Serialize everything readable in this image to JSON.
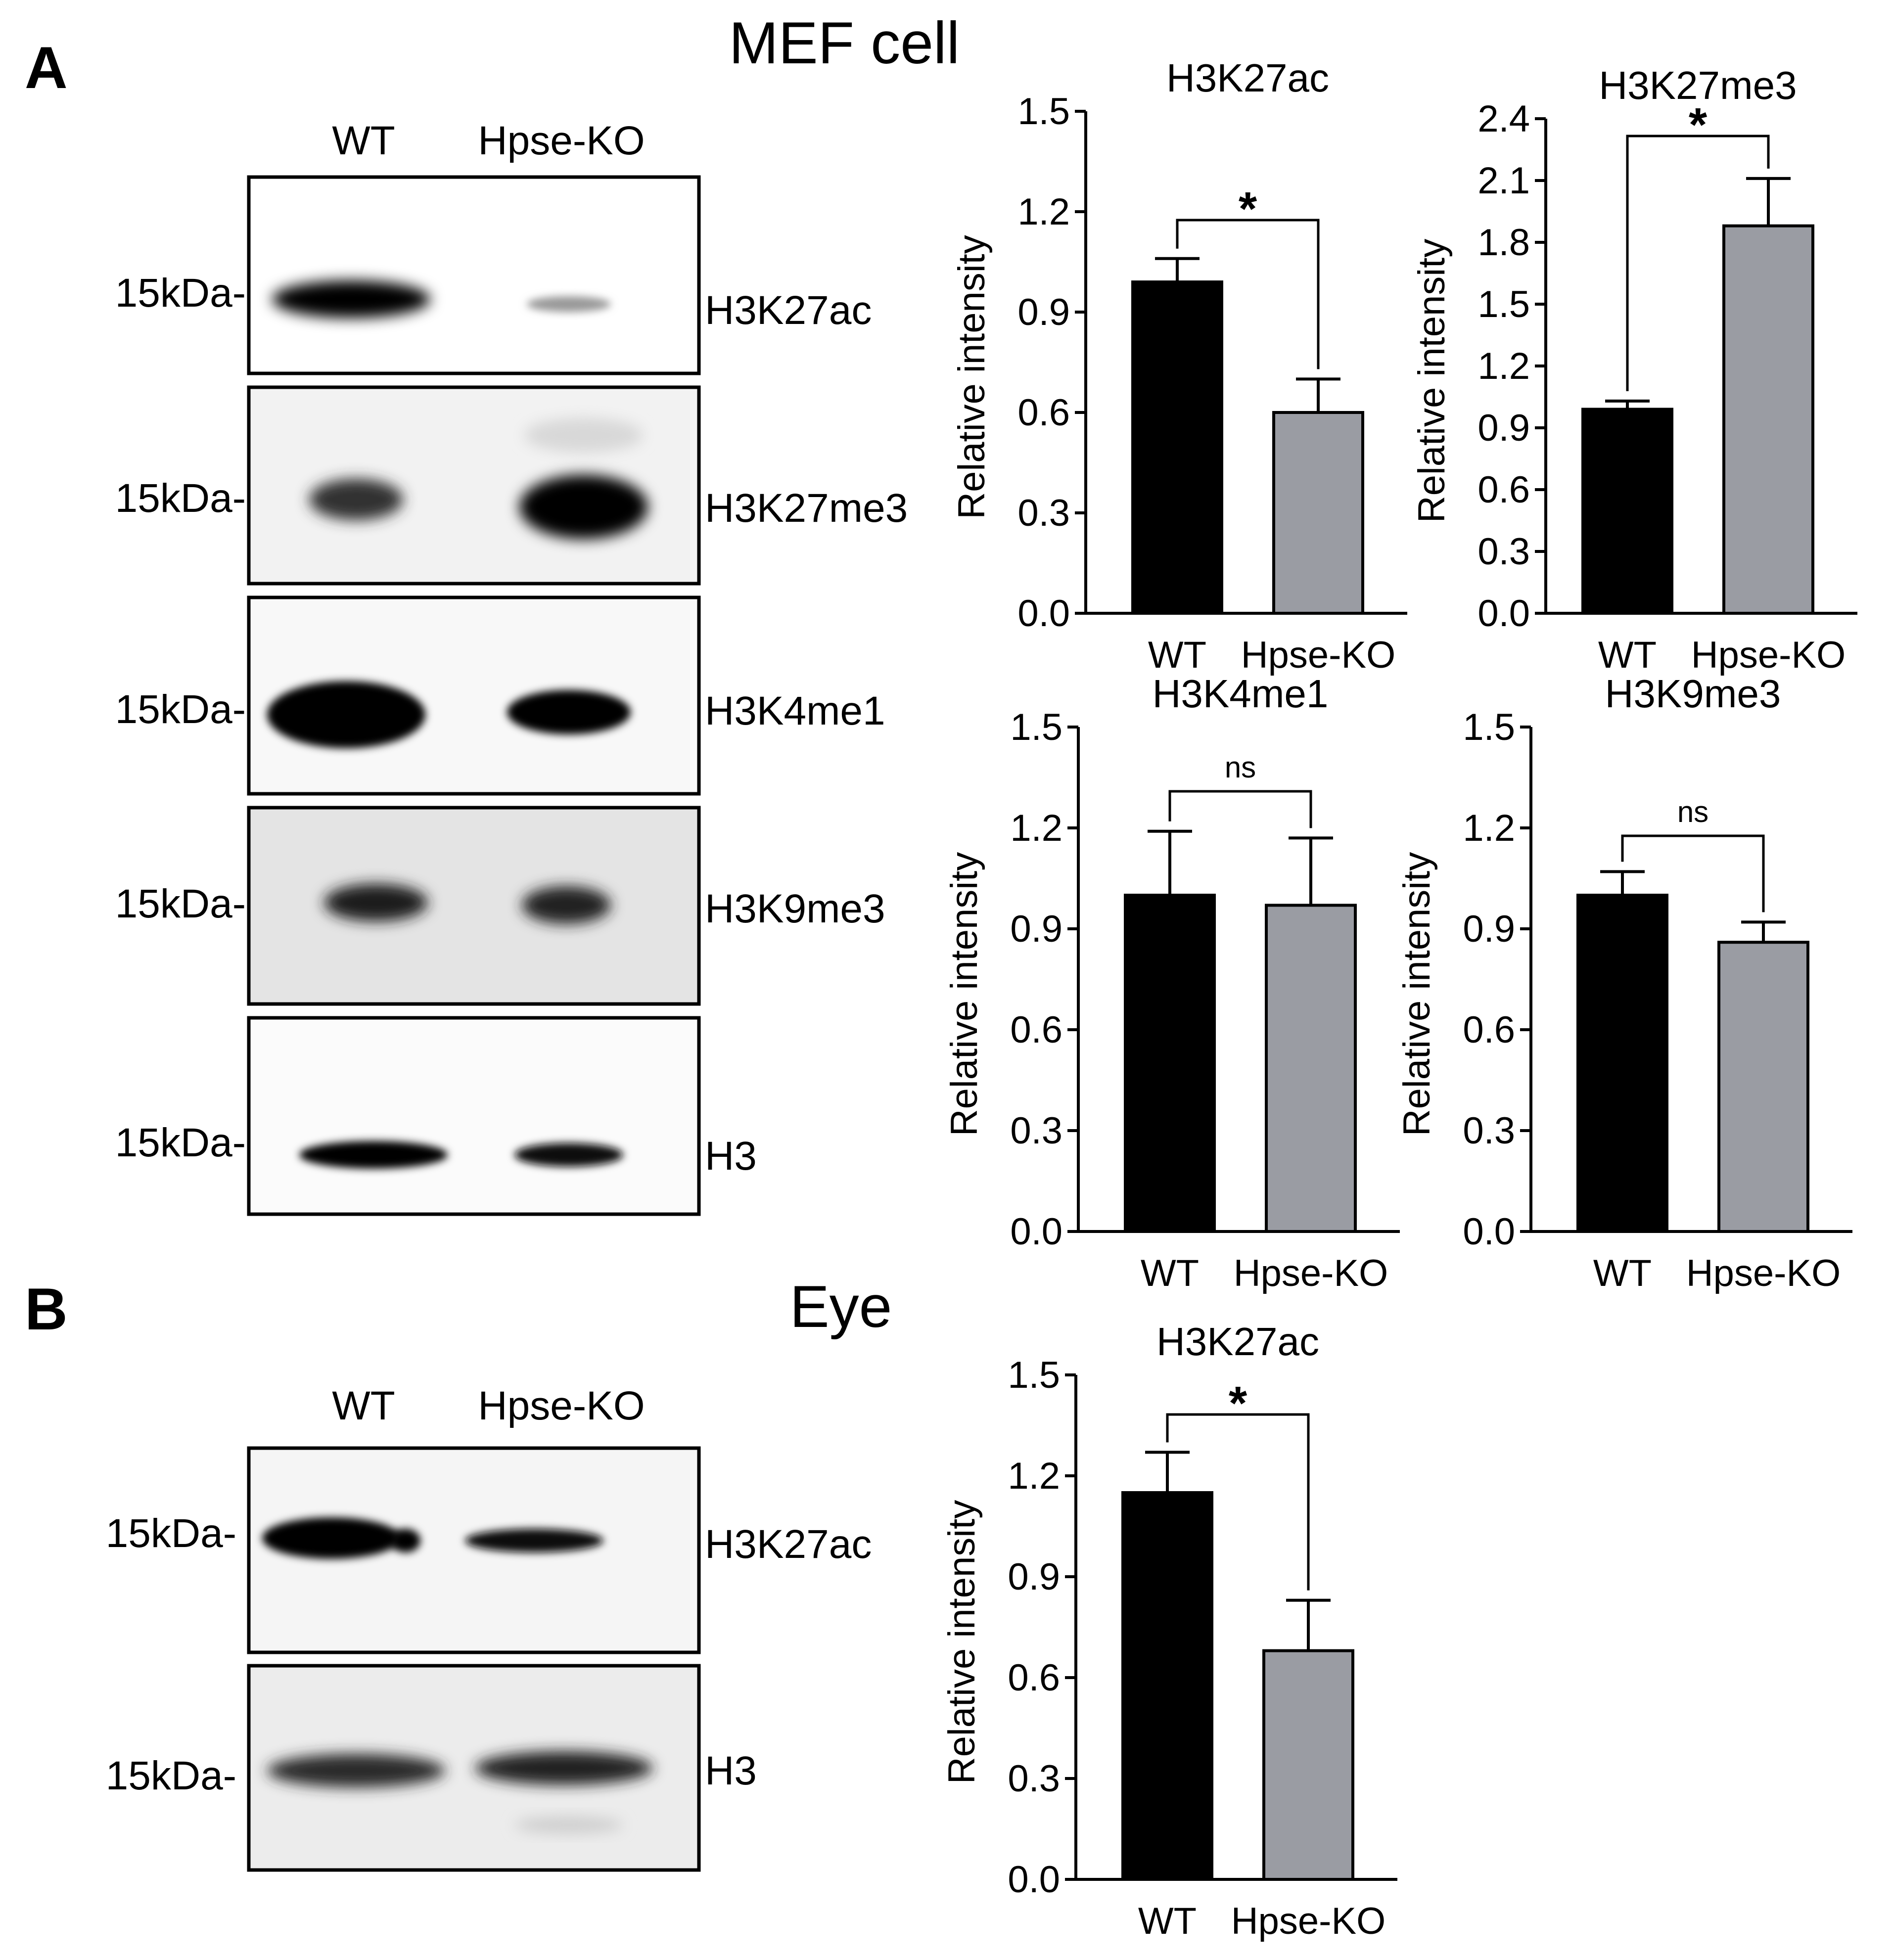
{
  "panelA": {
    "letter": "A",
    "title": "MEF cell",
    "lanes": [
      "WT",
      "Hpse-KO"
    ],
    "blots": [
      {
        "marker": "15kDa-",
        "label": "H3K27ac"
      },
      {
        "marker": "15kDa-",
        "label": "H3K27me3"
      },
      {
        "marker": "15kDa-",
        "label": "H3K4me1"
      },
      {
        "marker": "15kDa-",
        "label": "H3K9me3"
      },
      {
        "marker": "15kDa-",
        "label": "H3"
      }
    ]
  },
  "panelB": {
    "letter": "B",
    "title": "Eye",
    "lanes": [
      "WT",
      "Hpse-KO"
    ],
    "blots": [
      {
        "marker": "15kDa-",
        "label": "H3K27ac"
      },
      {
        "marker": "15kDa-",
        "label": "H3"
      }
    ]
  },
  "colors": {
    "wt_bar": "#000000",
    "ko_bar": "#9a9ca3"
  },
  "chart_data": [
    {
      "id": "a1",
      "type": "bar",
      "title": "H3K27ac",
      "ylabel": "Relative intensity",
      "categories": [
        "WT",
        "Hpse-KO"
      ],
      "values": [
        0.99,
        0.6
      ],
      "errors": [
        0.07,
        0.1
      ],
      "ylim": [
        0,
        1.5
      ],
      "ticks": [
        0.0,
        0.3,
        0.6,
        0.9,
        1.2,
        1.5
      ],
      "significance": "*"
    },
    {
      "id": "a2",
      "type": "bar",
      "title": "H3K27me3",
      "ylabel": "Relative intensity",
      "categories": [
        "WT",
        "Hpse-KO"
      ],
      "values": [
        0.99,
        1.88
      ],
      "errors": [
        0.04,
        0.23
      ],
      "ylim": [
        0,
        2.4
      ],
      "ticks": [
        0.0,
        0.3,
        0.6,
        0.9,
        1.2,
        1.5,
        1.8,
        2.1,
        2.4
      ],
      "significance": "*"
    },
    {
      "id": "a3",
      "type": "bar",
      "title": "H3K4me1",
      "ylabel": "Relative intensity",
      "categories": [
        "WT",
        "Hpse-KO"
      ],
      "values": [
        1.0,
        0.97
      ],
      "errors": [
        0.19,
        0.2
      ],
      "ylim": [
        0,
        1.5
      ],
      "ticks": [
        0.0,
        0.3,
        0.6,
        0.9,
        1.2,
        1.5
      ],
      "significance": "ns"
    },
    {
      "id": "a4",
      "type": "bar",
      "title": "H3K9me3",
      "ylabel": "Relative intensity",
      "categories": [
        "WT",
        "Hpse-KO"
      ],
      "values": [
        1.0,
        0.86
      ],
      "errors": [
        0.07,
        0.06
      ],
      "ylim": [
        0,
        1.5
      ],
      "ticks": [
        0.0,
        0.3,
        0.6,
        0.9,
        1.2,
        1.5
      ],
      "significance": "ns"
    },
    {
      "id": "b1",
      "type": "bar",
      "title": "H3K27ac",
      "ylabel": "Relative intensity",
      "categories": [
        "WT",
        "Hpse-KO"
      ],
      "values": [
        1.15,
        0.68
      ],
      "errors": [
        0.12,
        0.15
      ],
      "ylim": [
        0,
        1.5
      ],
      "ticks": [
        0.0,
        0.3,
        0.6,
        0.9,
        1.2,
        1.5
      ],
      "significance": "*"
    }
  ]
}
